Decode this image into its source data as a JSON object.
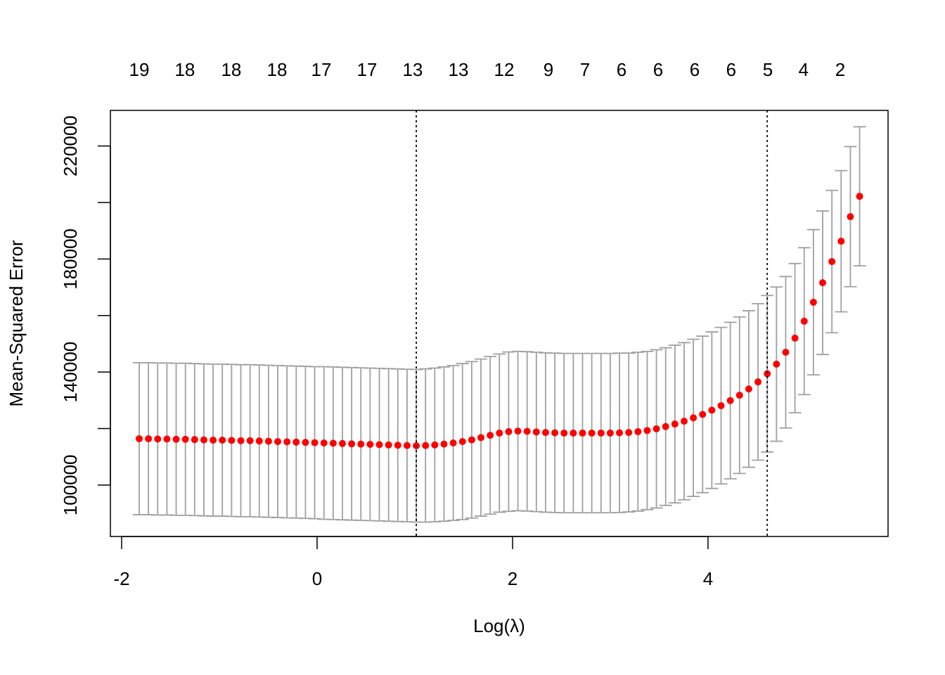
{
  "chart_data": {
    "type": "errorbar-scatter",
    "xlabel": "Log(λ)",
    "ylabel": "Mean-Squared Error",
    "xlim": [
      -2.115,
      5.842
    ],
    "ylim": [
      81800,
      232600
    ],
    "xticks": [
      -2,
      0,
      2,
      4
    ],
    "yticks": [
      100000,
      {
        "value": 120000,
        "label": null
      },
      140000,
      {
        "value": 160000,
        "label": null
      },
      180000,
      {
        "value": 200000,
        "label": null
      },
      220000
    ],
    "top_ticks": [
      {
        "value": -1.82,
        "label": "19"
      },
      {
        "value": -1.353,
        "label": "18"
      },
      {
        "value": -0.878,
        "label": "18"
      },
      {
        "value": -0.41,
        "label": "18"
      },
      {
        "value": 0.043,
        "label": "17"
      },
      {
        "value": 0.511,
        "label": "17"
      },
      {
        "value": 0.978,
        "label": "13"
      },
      {
        "value": 1.446,
        "label": "13"
      },
      {
        "value": 1.914,
        "label": "12"
      },
      {
        "value": 2.367,
        "label": "9"
      },
      {
        "value": 2.741,
        "label": "7"
      },
      {
        "value": 3.115,
        "label": "6"
      },
      {
        "value": 3.489,
        "label": "6"
      },
      {
        "value": 3.863,
        "label": "6"
      },
      {
        "value": 4.237,
        "label": "6"
      },
      {
        "value": 4.612,
        "label": "5"
      },
      {
        "value": 4.978,
        "label": "4"
      },
      {
        "value": 5.353,
        "label": "2"
      }
    ],
    "vlines": [
      1.015,
      4.606
    ],
    "x": [
      -1.82,
      -1.7255,
      -1.631,
      -1.5365,
      -1.442,
      -1.3475,
      -1.253,
      -1.1585,
      -1.064,
      -0.9695,
      -0.875,
      -0.7805,
      -0.686,
      -0.5915,
      -0.497,
      -0.4025,
      -0.308,
      -0.2135,
      -0.119,
      -0.0245,
      0.07,
      0.1645,
      0.259,
      0.3535,
      0.448,
      0.5425,
      0.637,
      0.7315,
      0.826,
      0.9205,
      1.015,
      1.1095,
      1.204,
      1.2985,
      1.393,
      1.4875,
      1.582,
      1.6765,
      1.771,
      1.8655,
      1.96,
      2.0545,
      2.149,
      2.2435,
      2.338,
      2.4325,
      2.527,
      2.6215,
      2.716,
      2.8105,
      2.905,
      2.9995,
      3.094,
      3.1885,
      3.283,
      3.3775,
      3.472,
      3.5665,
      3.661,
      3.7555,
      3.85,
      3.9445,
      4.039,
      4.1335,
      4.228,
      4.3225,
      4.417,
      4.5115,
      4.606,
      4.7005,
      4.795,
      4.8895,
      4.984,
      5.0785,
      5.173,
      5.2675,
      5.362,
      5.4565,
      5.551
    ],
    "series": [
      {
        "color": "#ff0000",
        "error_color": "#a0a0a0",
        "values": [
          116400,
          116400,
          116300,
          116300,
          116200,
          116200,
          116100,
          116000,
          115900,
          115900,
          115800,
          115700,
          115700,
          115600,
          115500,
          115400,
          115300,
          115200,
          115100,
          115000,
          114900,
          114800,
          114700,
          114600,
          114500,
          114400,
          114300,
          114200,
          114100,
          114000,
          113900,
          114000,
          114200,
          114500,
          114900,
          115400,
          116000,
          116800,
          117600,
          118400,
          118900,
          119100,
          119000,
          118800,
          118600,
          118500,
          118400,
          118400,
          118400,
          118400,
          118400,
          118400,
          118500,
          118600,
          118900,
          119300,
          119900,
          120700,
          121600,
          122600,
          123800,
          125000,
          126500,
          128100,
          129900,
          131800,
          134000,
          136500,
          139400,
          142800,
          147000,
          152000,
          158000,
          164700,
          171600,
          179100,
          186300,
          195000,
          202200
        ],
        "errors": [
          26900,
          26900,
          26900,
          26900,
          26900,
          26900,
          26900,
          26900,
          26900,
          26900,
          26900,
          26900,
          26900,
          26900,
          26900,
          26900,
          26900,
          26900,
          26900,
          26900,
          27000,
          27000,
          27000,
          27000,
          27000,
          27000,
          27000,
          27000,
          27000,
          27000,
          27000,
          27100,
          27200,
          27300,
          27400,
          27600,
          27700,
          27800,
          27900,
          28000,
          28200,
          28200,
          28200,
          28200,
          28200,
          28200,
          28200,
          28200,
          28200,
          28200,
          28200,
          28200,
          28200,
          28100,
          28100,
          28000,
          28000,
          27900,
          27900,
          27800,
          27800,
          27700,
          27700,
          27700,
          27700,
          27700,
          27700,
          27700,
          27700,
          27300,
          26800,
          26400,
          26000,
          25700,
          25400,
          25200,
          25000,
          24800,
          24600
        ]
      }
    ]
  }
}
